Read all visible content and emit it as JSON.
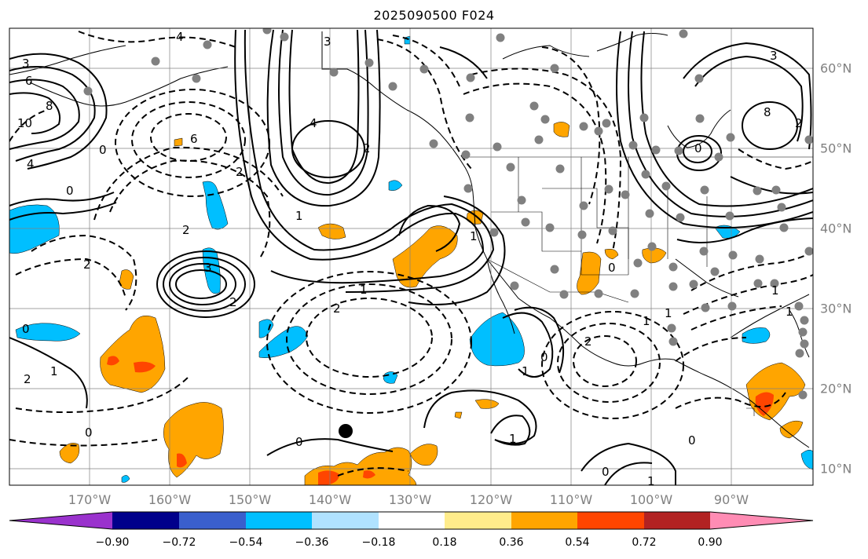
{
  "title": "2025090500 F024",
  "lon_labels": [
    "170°W",
    "160°W",
    "150°W",
    "140°W",
    "130°W",
    "120°W",
    "110°W",
    "100°W",
    "90°W"
  ],
  "lat_labels": [
    "60°N",
    "50°N",
    "40°N",
    "30°N",
    "20°N",
    "10°N"
  ],
  "colorbar": {
    "labels": [
      "−0.90",
      "−0.72",
      "−0.54",
      "−0.36",
      "−0.18",
      "0.18",
      "0.36",
      "0.54",
      "0.72",
      "0.90"
    ],
    "colors": [
      "#9a32cd",
      "#00008b",
      "#3a5fcd",
      "#00bfff",
      "#b0e2ff",
      "#ffffff",
      "#ffec8b",
      "#ffa500",
      "#ff4500",
      "#b22222",
      "#ff8cb4"
    ]
  },
  "contour_labels": [
    "4",
    "3",
    "6",
    "8",
    "10",
    "4",
    "0",
    "6",
    "2",
    "3",
    "4",
    "2",
    "2",
    "0",
    "2",
    "1",
    "2",
    "3",
    "2",
    "1",
    "1",
    "1",
    "0",
    "0",
    "0",
    "2",
    "1",
    "1",
    "0",
    "0",
    "1",
    "2",
    "1",
    "1",
    "0",
    "0",
    "1",
    "8",
    "3",
    "2",
    "0",
    "1"
  ],
  "colors": {
    "positive_fill": "#ffa500",
    "strong_positive": "#ff4500",
    "negative_fill": "#00bfff",
    "stations": "#808080"
  }
}
